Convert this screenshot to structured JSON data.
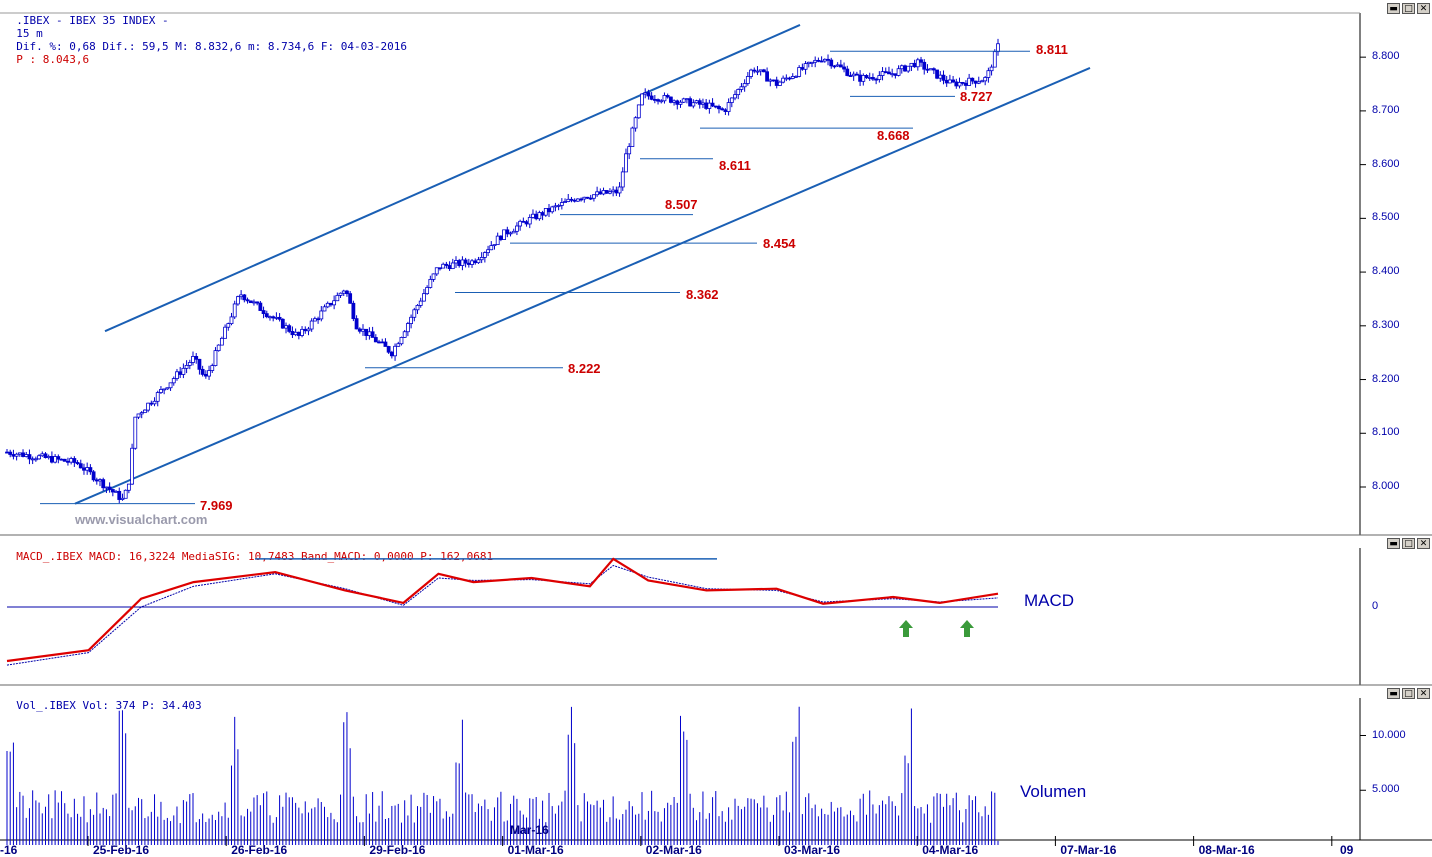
{
  "header_price": {
    "name": ".IBEX - IBEX 35 INDEX -",
    "interval": "15 m",
    "text": "Dif. %: 0,68 Dif.: 59,5 M: 8.832,6 m: 8.734,6 F: 04-03-2016",
    "p_label": "P : 8.043,6"
  },
  "header_macd": {
    "text": "MACD_.IBEX MACD: 16,3224 MediaSIG: 10,7483 Band_MACD: 0,0000 P: 162,0681"
  },
  "header_vol": {
    "text": "Vol_.IBEX Vol: 374 P: 34.403"
  },
  "window_buttons": {
    "minimize": "▬",
    "restore": "□",
    "close": "✕"
  },
  "watermark": "www.visualchart.com",
  "panel_labels": {
    "macd": "MACD",
    "volume": "Volumen",
    "month": "Mar-16"
  },
  "colors": {
    "price": "#0000cc",
    "levels": "#cc0000",
    "channel": "#1a5fb4",
    "macd_line": "#dd0000",
    "signal": "#0000aa",
    "arrow": "#3a9a3a"
  },
  "chart_data": [
    {
      "type": "candlestick",
      "title": ".IBEX - IBEX 35 INDEX - 15 m",
      "ylim": [
        7920,
        8890
      ],
      "y_ticks": [
        "8.000",
        "8.100",
        "8.200",
        "8.300",
        "8.400",
        "8.500",
        "8.600",
        "8.700",
        "8.800"
      ],
      "x_ticks": [
        "-16",
        "25-Feb-16",
        "26-Feb-16",
        "29-Feb-16",
        "01-Mar-16",
        "02-Mar-16",
        "03-Mar-16",
        "04-Mar-16",
        "07-Mar-16",
        "08-Mar-16",
        "09"
      ],
      "levels": [
        "7.969",
        "8.222",
        "8.362",
        "8.454",
        "8.507",
        "8.611",
        "8.668",
        "8.727",
        "8.811"
      ],
      "close_path": [
        [
          0,
          8065
        ],
        [
          0.6,
          8045
        ],
        [
          1.0,
          7975
        ],
        [
          1.05,
          8015
        ],
        [
          1.1,
          8130
        ],
        [
          1.6,
          8240
        ],
        [
          1.7,
          8200
        ],
        [
          2.0,
          8360
        ],
        [
          2.5,
          8280
        ],
        [
          2.9,
          8370
        ],
        [
          3.0,
          8300
        ],
        [
          3.3,
          8250
        ],
        [
          3.5,
          8330
        ],
        [
          3.7,
          8410
        ],
        [
          4.0,
          8420
        ],
        [
          4.25,
          8470
        ],
        [
          4.5,
          8500
        ],
        [
          4.9,
          8540
        ],
        [
          5.25,
          8550
        ],
        [
          5.3,
          8610
        ],
        [
          5.45,
          8730
        ],
        [
          6.0,
          8710
        ],
        [
          6.15,
          8700
        ],
        [
          6.4,
          8780
        ],
        [
          6.6,
          8750
        ],
        [
          7.0,
          8800
        ],
        [
          7.3,
          8760
        ],
        [
          7.6,
          8770
        ],
        [
          7.8,
          8790
        ],
        [
          8.1,
          8750
        ],
        [
          8.4,
          8760
        ],
        [
          8.5,
          8820
        ]
      ],
      "last_price": 8832.6
    },
    {
      "type": "line",
      "title": "MACD",
      "y_ticks": [
        "0"
      ],
      "series": [
        {
          "name": "MACD",
          "points": [
            [
              0,
              -65
            ],
            [
              0.7,
              -52
            ],
            [
              1.15,
              10
            ],
            [
              1.6,
              30
            ],
            [
              2.3,
              42
            ],
            [
              2.9,
              20
            ],
            [
              3.4,
              5
            ],
            [
              3.7,
              40
            ],
            [
              4.0,
              30
            ],
            [
              4.5,
              35
            ],
            [
              5.0,
              25
            ],
            [
              5.2,
              58
            ],
            [
              5.5,
              32
            ],
            [
              6.0,
              20
            ],
            [
              6.6,
              22
            ],
            [
              7.0,
              4
            ],
            [
              7.6,
              12
            ],
            [
              8.0,
              5
            ],
            [
              8.5,
              16
            ]
          ]
        },
        {
          "name": "MediaSIG",
          "points": [
            [
              0,
              -70
            ],
            [
              0.7,
              -55
            ],
            [
              1.15,
              0
            ],
            [
              1.6,
              25
            ],
            [
              2.3,
              40
            ],
            [
              2.9,
              22
            ],
            [
              3.4,
              2
            ],
            [
              3.7,
              35
            ],
            [
              4.0,
              32
            ],
            [
              4.5,
              33
            ],
            [
              5.0,
              28
            ],
            [
              5.2,
              50
            ],
            [
              5.5,
              36
            ],
            [
              6.0,
              22
            ],
            [
              6.6,
              20
            ],
            [
              7.0,
              6
            ],
            [
              7.6,
              10
            ],
            [
              8.0,
              6
            ],
            [
              8.5,
              11
            ]
          ]
        }
      ],
      "last": {
        "MACD": 16.3224,
        "MediaSIG": 10.7483
      }
    },
    {
      "type": "bar",
      "title": "Volumen",
      "y_ticks": [
        "5.000",
        "10.000"
      ],
      "ylim": [
        0,
        13000
      ],
      "last": 374
    }
  ]
}
